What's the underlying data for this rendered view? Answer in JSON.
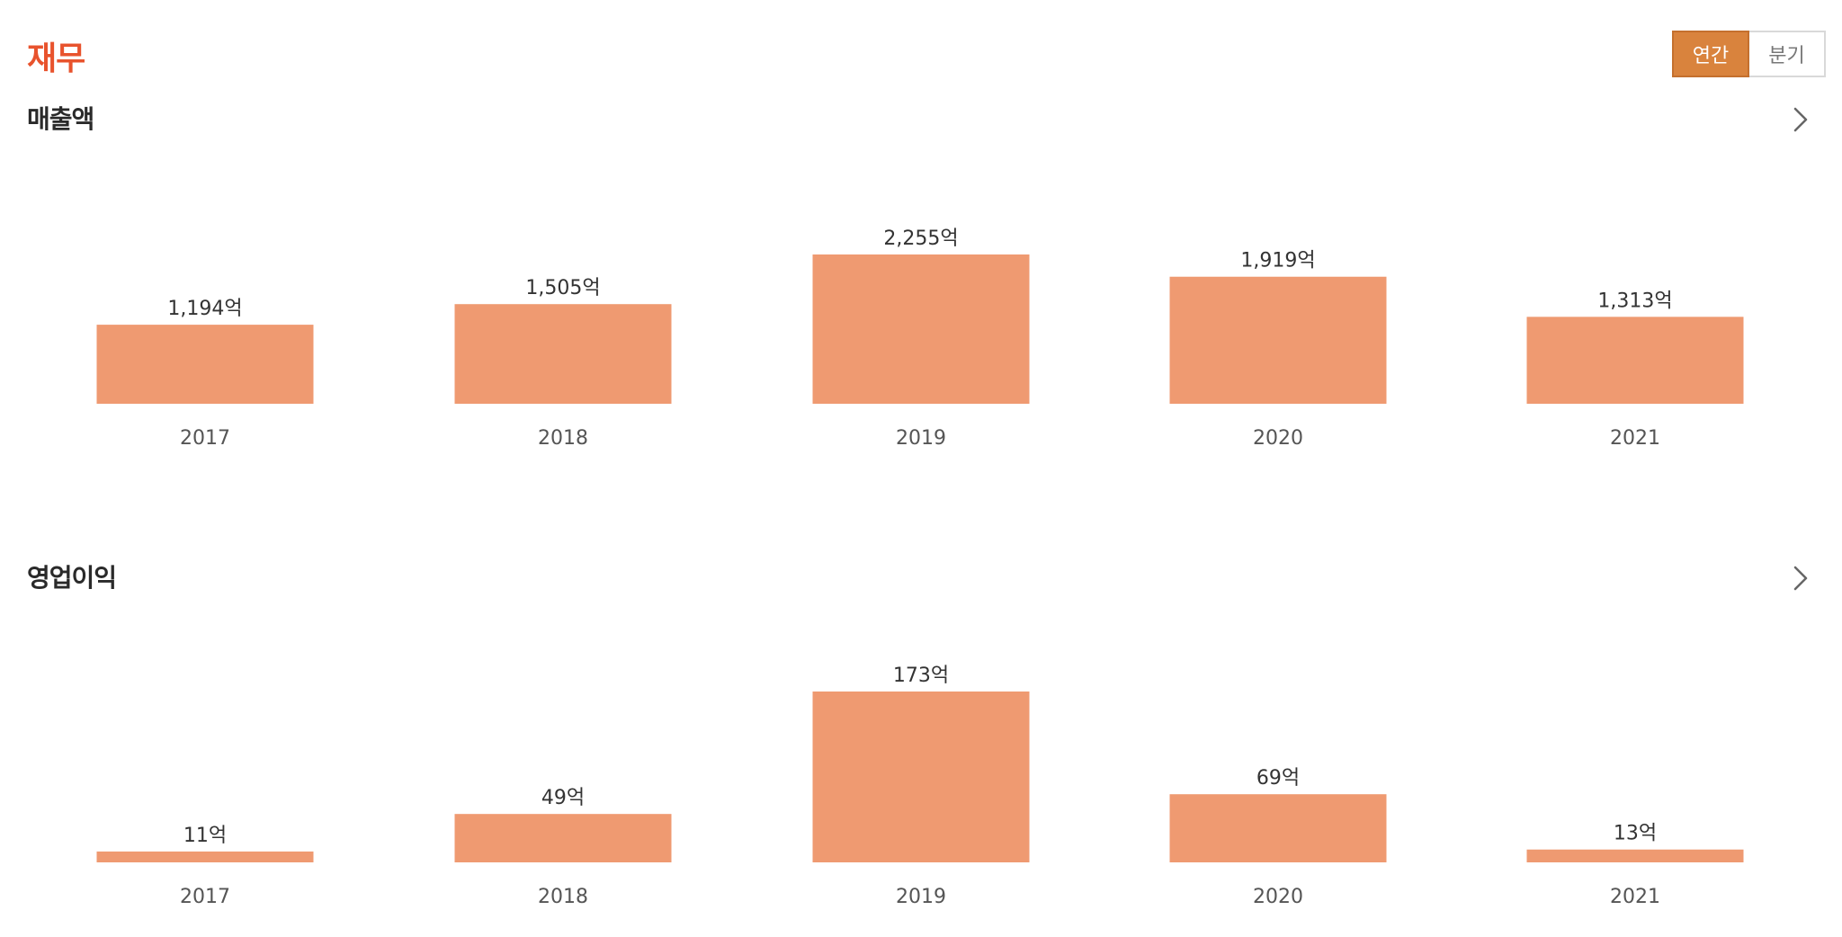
{
  "header": {
    "title": "재무",
    "toggle": {
      "options": [
        "연간",
        "분기"
      ],
      "selected": "연간"
    }
  },
  "colors": {
    "accent": "#e8532d",
    "bar": "#ef9a71",
    "toggle_active_bg": "#d9833d",
    "value_label": "#333333",
    "category_label": "#555555"
  },
  "icons": {
    "more": "chevron-right-icon"
  },
  "chart_data": [
    {
      "type": "bar",
      "title": "매출액",
      "categories": [
        "2017",
        "2018",
        "2019",
        "2020",
        "2021"
      ],
      "values": [
        1194,
        1505,
        2255,
        1919,
        1313
      ],
      "value_labels": [
        "1,194억",
        "1,505억",
        "2,255억",
        "1,919억",
        "1,313억"
      ],
      "unit": "억",
      "xlabel": "",
      "ylabel": "",
      "ylim": [
        0,
        2255
      ],
      "grid": false,
      "legend": "none"
    },
    {
      "type": "bar",
      "title": "영업이익",
      "categories": [
        "2017",
        "2018",
        "2019",
        "2020",
        "2021"
      ],
      "values": [
        11,
        49,
        173,
        69,
        13
      ],
      "value_labels": [
        "11억",
        "49억",
        "173억",
        "69억",
        "13억"
      ],
      "unit": "억",
      "xlabel": "",
      "ylabel": "",
      "ylim": [
        0,
        173
      ],
      "grid": false,
      "legend": "none"
    }
  ]
}
